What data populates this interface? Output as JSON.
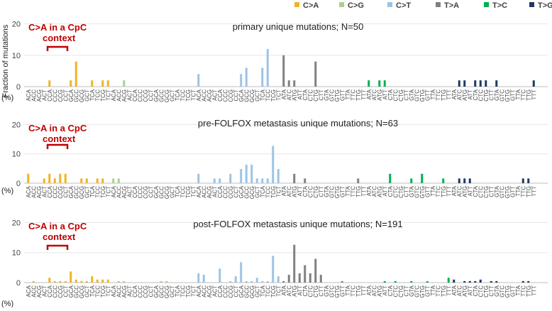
{
  "legend": {
    "position": "top-right",
    "items": [
      {
        "label": "C>A",
        "color": "#F0B323"
      },
      {
        "label": "C>G",
        "color": "#A9D08E"
      },
      {
        "label": "C>T",
        "color": "#9DC3E6"
      },
      {
        "label": "T>A",
        "color": "#808080"
      },
      {
        "label": "T>C",
        "color": "#00B050"
      },
      {
        "label": "T>G",
        "color": "#1F3864"
      }
    ]
  },
  "ylabel": "Fraction of mutations (%)",
  "annotation": {
    "line1": "C>A in a CpC",
    "line2": "context",
    "color": "#C00000"
  },
  "chart_data": [
    {
      "type": "bar",
      "title": "primary unique mutations; N=50",
      "ylim": [
        0,
        20
      ],
      "yticks": [
        0,
        10,
        20
      ],
      "grid": true,
      "categories": [
        "ACA",
        "ACC",
        "ACG",
        "ACT",
        "CCA",
        "CCC",
        "CCG",
        "CCT",
        "GCA",
        "GCC",
        "GCG",
        "GCT",
        "TCA",
        "TCC",
        "TCG",
        "TCT",
        "ACA",
        "ACC",
        "ACG",
        "ACT",
        "CCA",
        "CCC",
        "CCG",
        "CCT",
        "GCA",
        "GCC",
        "GCG",
        "GCT",
        "TCA",
        "TCC",
        "TCG",
        "TCT",
        "ACA",
        "ACC",
        "ACG",
        "ACT",
        "CCA",
        "CCC",
        "CCG",
        "CCT",
        "GCA",
        "GCC",
        "GCG",
        "GCT",
        "TCA",
        "TCC",
        "TCG",
        "TCT",
        "ATA",
        "ATC",
        "ATG",
        "ATT",
        "CTA",
        "CTC",
        "CTG",
        "CTT",
        "GTA",
        "GTC",
        "GTG",
        "GTT",
        "TTA",
        "TTC",
        "TTG",
        "TTT",
        "ATA",
        "ATC",
        "ATG",
        "ATT",
        "CTA",
        "CTC",
        "CTG",
        "CTT",
        "GTA",
        "GTC",
        "GTG",
        "GTT",
        "TTA",
        "TTC",
        "TTG",
        "TTT",
        "ATA",
        "ATC",
        "ATG",
        "ATT",
        "CTA",
        "CTC",
        "CTG",
        "CTT",
        "GTA",
        "GTC",
        "GTG",
        "GTT",
        "TTA",
        "TTC",
        "TTG",
        "TTT"
      ],
      "values": [
        0,
        0,
        0,
        0,
        2,
        0,
        0,
        0,
        2,
        8,
        0,
        0,
        2,
        0,
        2,
        2,
        0,
        0,
        2,
        0,
        0,
        0,
        0,
        0,
        0,
        0,
        0,
        0,
        0,
        0,
        0,
        0,
        4,
        0,
        0,
        0,
        0,
        0,
        0,
        0,
        4,
        6,
        0,
        0,
        6,
        12,
        0,
        0,
        10,
        2,
        2,
        0,
        0,
        0,
        8,
        0,
        0,
        0,
        0,
        0,
        0,
        0,
        0,
        0,
        2,
        0,
        2,
        2,
        0,
        0,
        0,
        0,
        0,
        0,
        0,
        0,
        0,
        0,
        0,
        0,
        0,
        2,
        2,
        0,
        2,
        2,
        2,
        0,
        2,
        0,
        0,
        0,
        0,
        0,
        0,
        2
      ]
    },
    {
      "type": "bar",
      "title": "pre-FOLFOX metastasis unique mutations; N=63",
      "ylim": [
        0,
        20
      ],
      "yticks": [
        0,
        10,
        20
      ],
      "grid": true,
      "categories": [
        "ACA",
        "ACC",
        "ACG",
        "ACT",
        "CCA",
        "CCC",
        "CCG",
        "CCT",
        "GCA",
        "GCC",
        "GCG",
        "GCT",
        "TCA",
        "TCC",
        "TCG",
        "TCT",
        "ACA",
        "ACC",
        "ACG",
        "ACT",
        "CCA",
        "CCC",
        "CCG",
        "CCT",
        "GCA",
        "GCC",
        "GCG",
        "GCT",
        "TCA",
        "TCC",
        "TCG",
        "TCT",
        "ACA",
        "ACC",
        "ACG",
        "ACT",
        "CCA",
        "CCC",
        "CCG",
        "CCT",
        "GCA",
        "GCC",
        "GCG",
        "GCT",
        "TCA",
        "TCC",
        "TCG",
        "TCT",
        "ATA",
        "ATC",
        "ATG",
        "ATT",
        "CTA",
        "CTC",
        "CTG",
        "CTT",
        "GTA",
        "GTC",
        "GTG",
        "GTT",
        "TTA",
        "TTC",
        "TTG",
        "TTT",
        "ATA",
        "ATC",
        "ATG",
        "ATT",
        "CTA",
        "CTC",
        "CTG",
        "CTT",
        "GTA",
        "GTC",
        "GTG",
        "GTT",
        "TTA",
        "TTC",
        "TTG",
        "TTT",
        "ATA",
        "ATC",
        "ATG",
        "ATT",
        "CTA",
        "CTC",
        "CTG",
        "CTT",
        "GTA",
        "GTC",
        "GTG",
        "GTT",
        "TTA",
        "TTC",
        "TTG",
        "TTT"
      ],
      "values": [
        3.2,
        0,
        0,
        1.6,
        3.2,
        1.6,
        3.2,
        3.2,
        0,
        0,
        1.6,
        1.6,
        0,
        1.6,
        1.6,
        0,
        1.6,
        1.6,
        0,
        0,
        0,
        0,
        0,
        0,
        0,
        0,
        0,
        0,
        0,
        0,
        0,
        0,
        3.2,
        0,
        0,
        1.6,
        1.6,
        0,
        3.2,
        0,
        4.8,
        6.3,
        6.3,
        1.6,
        1.6,
        1.6,
        12.7,
        4.8,
        0,
        0,
        3.2,
        0,
        1.6,
        0,
        0,
        0,
        0,
        0,
        0,
        0,
        0,
        0,
        1.6,
        0,
        0,
        0,
        0,
        0,
        3.2,
        0,
        0,
        0,
        1.6,
        0,
        3.2,
        0,
        0,
        0,
        1.6,
        0,
        0,
        1.6,
        1.6,
        1.6,
        0,
        0,
        0,
        0,
        0,
        0,
        0,
        0,
        0,
        1.6,
        1.6,
        0
      ]
    },
    {
      "type": "bar",
      "title": "post-FOLFOX metastasis unique mutations; N=191",
      "ylim": [
        0,
        20
      ],
      "yticks": [
        0,
        10,
        20
      ],
      "grid": true,
      "categories": [
        "ACA",
        "ACC",
        "ACG",
        "ACT",
        "CCA",
        "CCC",
        "CCG",
        "CCT",
        "GCA",
        "GCC",
        "GCG",
        "GCT",
        "TCA",
        "TCC",
        "TCG",
        "TCT",
        "ACA",
        "ACC",
        "ACG",
        "ACT",
        "CCA",
        "CCC",
        "CCG",
        "CCT",
        "GCA",
        "GCC",
        "GCG",
        "GCT",
        "TCA",
        "TCC",
        "TCG",
        "TCT",
        "ACA",
        "ACC",
        "ACG",
        "ACT",
        "CCA",
        "CCC",
        "CCG",
        "CCT",
        "GCA",
        "GCC",
        "GCG",
        "GCT",
        "TCA",
        "TCC",
        "TCG",
        "TCT",
        "ATA",
        "ATC",
        "ATG",
        "ATT",
        "CTA",
        "CTC",
        "CTG",
        "CTT",
        "GTA",
        "GTC",
        "GTG",
        "GTT",
        "TTA",
        "TTC",
        "TTG",
        "TTT",
        "ATA",
        "ATC",
        "ATG",
        "ATT",
        "CTA",
        "CTC",
        "CTG",
        "CTT",
        "GTA",
        "GTC",
        "GTG",
        "GTT",
        "TTA",
        "TTC",
        "TTG",
        "TTT",
        "ATA",
        "ATC",
        "ATG",
        "ATT",
        "CTA",
        "CTC",
        "CTG",
        "CTT",
        "GTA",
        "GTC",
        "GTG",
        "GTT",
        "TTA",
        "TTC",
        "TTG",
        "TTT"
      ],
      "values": [
        0,
        0.5,
        0,
        0,
        1.6,
        0.5,
        0.5,
        0.5,
        3.7,
        1,
        0.5,
        0.5,
        2.1,
        1,
        1,
        1,
        0,
        0.5,
        0.5,
        0,
        0,
        0,
        0,
        0,
        0,
        0.5,
        0.5,
        0,
        0,
        0,
        0,
        0,
        3.1,
        2.6,
        0,
        0,
        4.7,
        0,
        0.5,
        2.1,
        6.8,
        0.5,
        0.5,
        1.6,
        0.5,
        0.5,
        8.9,
        2.1,
        0.5,
        2.6,
        12.6,
        3.1,
        5.8,
        3.1,
        7.9,
        2.6,
        0,
        0,
        0,
        0.5,
        0,
        0,
        0,
        0,
        0,
        0,
        0,
        0.5,
        0,
        0.5,
        0,
        0,
        0.5,
        0,
        0,
        0.5,
        0,
        0,
        0,
        1.6,
        1,
        0,
        0.5,
        0.5,
        0.5,
        1,
        0,
        0.5,
        0.5,
        0,
        0,
        0,
        0,
        0.5,
        0.5,
        0
      ]
    }
  ]
}
